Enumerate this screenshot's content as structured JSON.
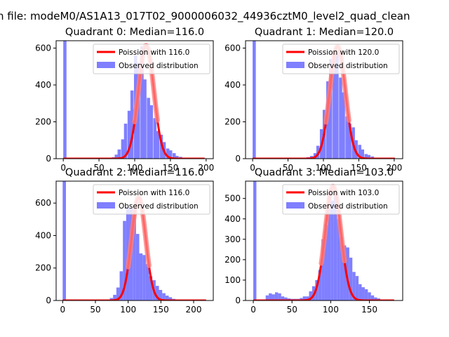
{
  "figure": {
    "suptitle": "n file: modeM0/AS1A13_017T02_9000006032_44936cztM0_level2_quad_clean"
  },
  "chart_data": [
    {
      "type": "bar",
      "title": "Quadrant 0: Median=116.0",
      "xlim": [
        -10,
        210
      ],
      "ylim": [
        0,
        640
      ],
      "xticks": [
        0,
        50,
        100,
        150,
        200
      ],
      "yticks": [
        0,
        200,
        400,
        600
      ],
      "bin_width": 4.5,
      "bins": [
        [
          0,
          640
        ],
        [
          68,
          8
        ],
        [
          72,
          22
        ],
        [
          76,
          50
        ],
        [
          81,
          105
        ],
        [
          85,
          190
        ],
        [
          90,
          260
        ],
        [
          94,
          370
        ],
        [
          99,
          560
        ],
        [
          103,
          520
        ],
        [
          108,
          610
        ],
        [
          112,
          430
        ],
        [
          117,
          330
        ],
        [
          121,
          290
        ],
        [
          126,
          220
        ],
        [
          130,
          150
        ],
        [
          135,
          130
        ],
        [
          139,
          90
        ],
        [
          144,
          55
        ],
        [
          148,
          45
        ],
        [
          153,
          30
        ],
        [
          157,
          15
        ],
        [
          162,
          10
        ],
        [
          166,
          5
        ]
      ],
      "bar_color": "#7f7fff",
      "poisson": {
        "lambda": 116.0,
        "peak": 615,
        "xmax": 198,
        "color": "#ff0000"
      },
      "legend": [
        "Poission with 116.0",
        "Observed distribution"
      ],
      "legend_position": "upper right"
    },
    {
      "type": "bar",
      "title": "Quadrant 1: Median=120.0",
      "xlim": [
        -10,
        212
      ],
      "ylim": [
        0,
        640
      ],
      "xticks": [
        0,
        50,
        100,
        150,
        200
      ],
      "yticks": [
        0,
        200,
        400,
        600
      ],
      "bin_width": 4.5,
      "bins": [
        [
          0,
          640
        ],
        [
          76,
          8
        ],
        [
          81,
          15
        ],
        [
          86,
          30
        ],
        [
          90,
          70
        ],
        [
          95,
          160
        ],
        [
          99,
          265
        ],
        [
          104,
          420
        ],
        [
          108,
          540
        ],
        [
          113,
          590
        ],
        [
          117,
          570
        ],
        [
          122,
          440
        ],
        [
          126,
          360
        ],
        [
          131,
          230
        ],
        [
          135,
          190
        ],
        [
          140,
          170
        ],
        [
          144,
          100
        ],
        [
          149,
          75
        ],
        [
          153,
          50
        ],
        [
          158,
          25
        ],
        [
          162,
          20
        ],
        [
          167,
          12
        ]
      ],
      "bar_color": "#7f7fff",
      "poisson": {
        "lambda": 120.0,
        "peak": 610,
        "xmax": 201,
        "color": "#ff0000"
      },
      "legend": [
        "Poission with 120.0",
        "Observed distribution"
      ],
      "legend_position": "upper right"
    },
    {
      "type": "bar",
      "title": "Quadrant 2: Median=116.0",
      "xlim": [
        -10,
        230
      ],
      "ylim": [
        0,
        735
      ],
      "xticks": [
        0,
        50,
        100,
        150,
        200
      ],
      "yticks": [
        0,
        200,
        400,
        600
      ],
      "bin_width": 5,
      "bins": [
        [
          0,
          735
        ],
        [
          67,
          5
        ],
        [
          72,
          15
        ],
        [
          77,
          35
        ],
        [
          82,
          80
        ],
        [
          87,
          180
        ],
        [
          92,
          490
        ],
        [
          97,
          575
        ],
        [
          102,
          570
        ],
        [
          107,
          560
        ],
        [
          112,
          410
        ],
        [
          117,
          290
        ],
        [
          122,
          280
        ],
        [
          127,
          225
        ],
        [
          132,
          150
        ],
        [
          137,
          125
        ],
        [
          142,
          90
        ],
        [
          147,
          65
        ],
        [
          152,
          45
        ],
        [
          157,
          30
        ],
        [
          162,
          20
        ],
        [
          167,
          10
        ]
      ],
      "bar_color": "#7f7fff",
      "poisson": {
        "lambda": 116.0,
        "peak": 635,
        "xmax": 219,
        "color": "#ff0000"
      },
      "legend": [
        "Poission with 116.0",
        "Observed distribution"
      ],
      "legend_position": "upper right"
    },
    {
      "type": "bar",
      "title": "Quadrant 3: Median=103.0",
      "xlim": [
        -10,
        193
      ],
      "ylim": [
        0,
        585
      ],
      "xticks": [
        0,
        50,
        100,
        150
      ],
      "yticks": [
        0,
        100,
        200,
        300,
        400,
        500
      ],
      "bin_width": 4,
      "bins": [
        [
          0,
          585
        ],
        [
          16,
          25
        ],
        [
          20,
          35
        ],
        [
          24,
          30
        ],
        [
          28,
          40
        ],
        [
          32,
          35
        ],
        [
          36,
          20
        ],
        [
          40,
          15
        ],
        [
          44,
          10
        ],
        [
          48,
          8
        ],
        [
          52,
          8
        ],
        [
          56,
          8
        ],
        [
          60,
          12
        ],
        [
          64,
          20
        ],
        [
          68,
          20
        ],
        [
          72,
          45
        ],
        [
          76,
          70
        ],
        [
          80,
          100
        ],
        [
          84,
          150
        ],
        [
          88,
          300
        ],
        [
          92,
          370
        ],
        [
          96,
          530
        ],
        [
          100,
          490
        ],
        [
          104,
          520
        ],
        [
          108,
          400
        ],
        [
          112,
          310
        ],
        [
          116,
          270
        ],
        [
          120,
          260
        ],
        [
          124,
          210
        ],
        [
          128,
          140
        ],
        [
          132,
          120
        ],
        [
          136,
          80
        ],
        [
          140,
          65
        ],
        [
          144,
          55
        ],
        [
          148,
          40
        ],
        [
          152,
          25
        ],
        [
          156,
          15
        ],
        [
          160,
          10
        ],
        [
          164,
          5
        ]
      ],
      "bar_color": "#7f7fff",
      "poisson": {
        "lambda": 103.0,
        "peak": 560,
        "xmax": 182,
        "color": "#ff0000"
      },
      "legend": [
        "Poission with 103.0",
        "Observed distribution"
      ],
      "legend_position": "upper right"
    }
  ]
}
